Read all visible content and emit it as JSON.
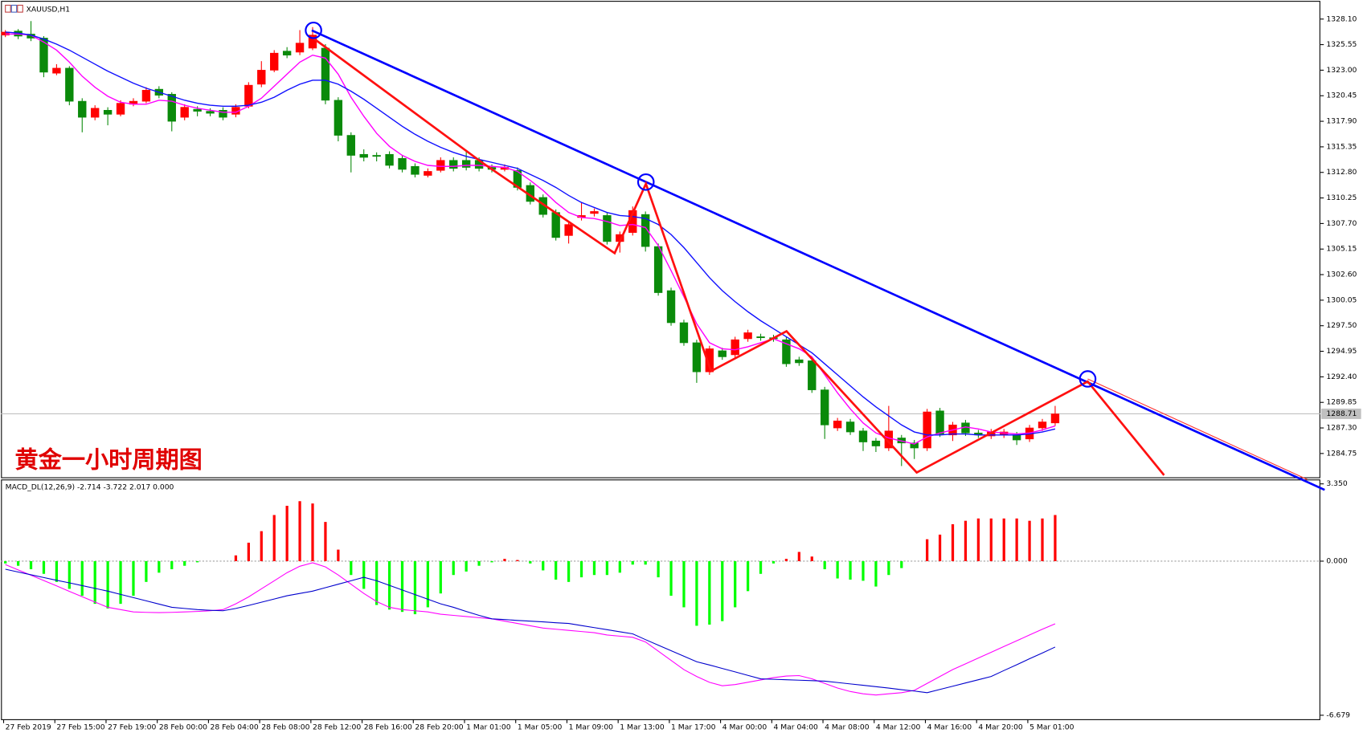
{
  "chart_data": [
    {
      "type": "candlestick",
      "title": "XAUUSD,H1",
      "annotation": "黄金一小时周期图",
      "categories": [
        "27 Feb 2019",
        null,
        null,
        null,
        "27 Feb 15:00",
        null,
        null,
        null,
        "27 Feb 19:00",
        null,
        null,
        null,
        "28 Feb 00:00",
        null,
        null,
        null,
        "28 Feb 04:00",
        null,
        null,
        null,
        "28 Feb 08:00",
        null,
        null,
        null,
        "28 Feb 12:00",
        null,
        null,
        null,
        "28 Feb 16:00",
        null,
        null,
        null,
        "28 Feb 20:00",
        null,
        null,
        null,
        "1 Mar 01:00",
        null,
        null,
        null,
        "1 Mar 05:00",
        null,
        null,
        null,
        "1 Mar 09:00",
        null,
        null,
        null,
        "1 Mar 13:00",
        null,
        null,
        null,
        "1 Mar 17:00",
        null,
        null,
        null,
        "4 Mar 00:00",
        null,
        null,
        null,
        "4 Mar 04:00",
        null,
        null,
        null,
        "4 Mar 08:00",
        null,
        null,
        null,
        "4 Mar 12:00",
        null,
        null,
        null,
        "4 Mar 16:00",
        null,
        null,
        null,
        "4 Mar 20:00",
        null,
        null,
        null,
        "5 Mar 01:00",
        null,
        null
      ],
      "open": [
        1326.5,
        1326.9,
        1326.6,
        1326.2,
        1322.7,
        1323.2,
        1319.9,
        1318.3,
        1319.0,
        1318.6,
        1319.6,
        1319.9,
        1321.1,
        1320.6,
        1318.3,
        1319.1,
        1318.9,
        1319.0,
        1318.6,
        1319.4,
        1321.6,
        1323.0,
        1324.9,
        1324.8,
        1325.2,
        1325.2,
        1320.0,
        1316.5,
        1314.6,
        1314.5,
        1314.6,
        1314.2,
        1313.4,
        1312.5,
        1313.0,
        1314.0,
        1314.0,
        1314.0,
        1313.3,
        1313.1,
        1313.0,
        1311.5,
        1310.3,
        1308.8,
        1306.5,
        1308.3,
        1308.7,
        1308.5,
        1305.9,
        1306.8,
        1308.6,
        1305.4,
        1301.0,
        1297.8,
        1295.8,
        1292.9,
        1295.0,
        1294.6,
        1296.2,
        1296.4,
        1296.3,
        1296.1,
        1294.1,
        1294.0,
        1291.1,
        1287.3,
        1287.9,
        1287.0,
        1286.0,
        1285.3,
        1286.3,
        1285.8,
        1285.3,
        1289.0,
        1286.6,
        1287.8,
        1286.8,
        1286.5,
        1286.6,
        1286.6,
        1286.2,
        1287.3,
        1287.8
      ],
      "high": [
        1327.0,
        1327.1,
        1327.9,
        1326.4,
        1323.6,
        1323.4,
        1320.2,
        1319.5,
        1319.3,
        1320.0,
        1320.2,
        1321.3,
        1321.4,
        1320.8,
        1319.6,
        1319.4,
        1319.2,
        1319.3,
        1319.6,
        1321.8,
        1323.9,
        1325.0,
        1325.3,
        1327.0,
        1327.3,
        1325.6,
        1320.3,
        1316.8,
        1315.1,
        1314.8,
        1314.9,
        1314.5,
        1313.7,
        1313.2,
        1314.3,
        1314.3,
        1315.0,
        1314.3,
        1313.6,
        1313.6,
        1313.3,
        1311.8,
        1310.6,
        1309.1,
        1307.9,
        1309.8,
        1309.2,
        1308.8,
        1306.9,
        1309.4,
        1308.9,
        1305.7,
        1301.3,
        1298.1,
        1296.1,
        1295.5,
        1295.3,
        1296.4,
        1297.1,
        1296.7,
        1296.6,
        1296.4,
        1294.4,
        1294.3,
        1291.4,
        1288.3,
        1288.2,
        1287.3,
        1286.3,
        1289.5,
        1286.6,
        1286.1,
        1289.2,
        1289.3,
        1287.9,
        1288.1,
        1287.1,
        1287.2,
        1287.2,
        1286.9,
        1287.6,
        1288.2,
        1289.5
      ],
      "low": [
        1326.3,
        1326.1,
        1325.9,
        1322.3,
        1322.5,
        1319.5,
        1316.8,
        1318.0,
        1317.5,
        1318.4,
        1319.4,
        1319.7,
        1320.2,
        1316.9,
        1318.0,
        1318.4,
        1318.4,
        1318.0,
        1318.3,
        1319.2,
        1321.3,
        1322.8,
        1324.2,
        1324.5,
        1325.0,
        1319.6,
        1315.9,
        1312.8,
        1313.9,
        1313.9,
        1313.2,
        1312.8,
        1312.3,
        1312.3,
        1312.8,
        1312.9,
        1313.0,
        1312.9,
        1312.8,
        1312.9,
        1311.0,
        1309.6,
        1308.3,
        1306.0,
        1305.7,
        1308.0,
        1308.4,
        1305.6,
        1304.8,
        1306.5,
        1304.9,
        1300.5,
        1297.5,
        1295.5,
        1291.8,
        1292.6,
        1294.1,
        1294.3,
        1295.9,
        1296.0,
        1295.9,
        1293.4,
        1293.5,
        1290.8,
        1286.2,
        1287.0,
        1286.6,
        1285.0,
        1284.9,
        1285.0,
        1283.5,
        1284.2,
        1285.0,
        1286.4,
        1286.0,
        1286.5,
        1286.3,
        1286.2,
        1286.3,
        1285.6,
        1285.9,
        1287.0,
        1287.5
      ],
      "close": [
        1326.8,
        1326.4,
        1326.2,
        1322.8,
        1323.2,
        1319.9,
        1318.3,
        1319.2,
        1318.6,
        1319.7,
        1319.9,
        1321.0,
        1320.5,
        1317.9,
        1319.3,
        1318.9,
        1318.7,
        1318.3,
        1319.3,
        1321.5,
        1323.0,
        1324.7,
        1324.5,
        1325.7,
        1326.5,
        1320.0,
        1316.5,
        1314.5,
        1314.3,
        1314.4,
        1313.5,
        1313.1,
        1312.6,
        1312.9,
        1314.0,
        1313.2,
        1313.3,
        1313.2,
        1313.1,
        1313.3,
        1311.3,
        1309.9,
        1308.6,
        1306.3,
        1307.6,
        1308.5,
        1308.9,
        1305.9,
        1306.6,
        1309.0,
        1305.4,
        1300.8,
        1297.8,
        1295.8,
        1292.9,
        1295.2,
        1294.4,
        1296.1,
        1296.8,
        1296.3,
        1296.2,
        1293.7,
        1293.8,
        1291.1,
        1287.6,
        1288.0,
        1286.9,
        1285.9,
        1285.5,
        1287.0,
        1285.8,
        1285.3,
        1288.9,
        1286.7,
        1287.6,
        1286.8,
        1286.6,
        1286.9,
        1286.9,
        1286.1,
        1287.3,
        1287.9,
        1288.7
      ],
      "up_color": "#ff0000",
      "down_color": "#0a8a0a",
      "series": [
        {
          "color": "#ff00ff",
          "values": [
            1326.6,
            1326.6,
            1326.5,
            1325.8,
            1325.0,
            1323.8,
            1322.4,
            1321.3,
            1320.4,
            1319.8,
            1319.6,
            1319.6,
            1320.0,
            1319.9,
            1319.5,
            1319.2,
            1319.0,
            1318.8,
            1318.8,
            1319.4,
            1320.2,
            1321.4,
            1322.6,
            1323.8,
            1324.5,
            1324.2,
            1322.6,
            1320.3,
            1318.4,
            1316.7,
            1315.4,
            1314.5,
            1313.9,
            1313.5,
            1313.4,
            1313.4,
            1313.5,
            1313.5,
            1313.4,
            1313.3,
            1312.9,
            1312.0,
            1311.0,
            1309.8,
            1308.8,
            1308.3,
            1308.2,
            1307.9,
            1307.5,
            1307.6,
            1307.3,
            1305.5,
            1303.0,
            1300.4,
            1297.7,
            1295.8,
            1295.2,
            1295.1,
            1295.4,
            1295.8,
            1296.2,
            1295.7,
            1295.2,
            1294.4,
            1292.6,
            1290.8,
            1289.2,
            1287.8,
            1286.8,
            1286.3,
            1286.0,
            1285.7,
            1286.4,
            1286.8,
            1287.1,
            1287.4,
            1287.2,
            1286.9,
            1286.8,
            1286.7,
            1286.8,
            1287.1,
            1287.5
          ]
        },
        {
          "color": "#1010ff",
          "values": [
            1326.8,
            1326.7,
            1326.5,
            1326.1,
            1325.6,
            1325.0,
            1324.3,
            1323.6,
            1322.9,
            1322.3,
            1321.7,
            1321.2,
            1320.8,
            1320.4,
            1320.0,
            1319.7,
            1319.5,
            1319.4,
            1319.4,
            1319.5,
            1319.8,
            1320.3,
            1321.0,
            1321.6,
            1322.0,
            1322.0,
            1321.6,
            1320.9,
            1320.1,
            1319.2,
            1318.3,
            1317.4,
            1316.6,
            1315.9,
            1315.3,
            1314.8,
            1314.4,
            1314.1,
            1313.8,
            1313.5,
            1313.2,
            1312.6,
            1312.0,
            1311.3,
            1310.5,
            1309.8,
            1309.3,
            1308.8,
            1308.5,
            1308.4,
            1308.2,
            1307.6,
            1306.6,
            1305.3,
            1303.8,
            1302.3,
            1301.0,
            1299.9,
            1298.9,
            1298.0,
            1297.2,
            1296.4,
            1295.6,
            1294.8,
            1293.7,
            1292.6,
            1291.5,
            1290.4,
            1289.4,
            1288.5,
            1287.6,
            1286.9,
            1286.6,
            1286.6,
            1286.7,
            1286.7,
            1286.6,
            1286.6,
            1286.6,
            1286.6,
            1286.7,
            1286.9,
            1287.2
          ]
        }
      ],
      "current_price": 1288.71,
      "ylim": [
        1282.33,
        1329.83
      ],
      "yticks": [
        {
          "value": 1328.1,
          "label": "1328.10"
        },
        {
          "value": 1325.55,
          "label": "1325.55"
        },
        {
          "value": 1323,
          "label": "1323.00"
        },
        {
          "value": 1320.45,
          "label": "1320.45"
        },
        {
          "value": 1317.9,
          "label": "1317.90"
        },
        {
          "value": 1315.35,
          "label": "1315.35"
        },
        {
          "value": 1312.8,
          "label": "1312.80"
        },
        {
          "value": 1310.25,
          "label": "1310.25"
        },
        {
          "value": 1307.7,
          "label": "1307.70"
        },
        {
          "value": 1305.15,
          "label": "1305.15"
        },
        {
          "value": 1302.6,
          "label": "1302.60"
        },
        {
          "value": 1300.05,
          "label": "1300.05"
        },
        {
          "value": 1297.5,
          "label": "1297.50"
        },
        {
          "value": 1294.95,
          "label": "1294.95"
        },
        {
          "value": 1292.4,
          "label": "1292.40"
        },
        {
          "value": 1289.85,
          "label": "1289.85"
        },
        {
          "value": 1287.3,
          "label": "1287.30"
        },
        {
          "value": 1284.75,
          "label": "1284.75"
        }
      ]
    },
    {
      "type": "macd",
      "label": "MACD_DL(12,26,9) -2.714 -3.722 2.017 0.000",
      "values": [
        -0.1,
        -0.2,
        -0.35,
        -0.55,
        -0.9,
        -1.2,
        -1.5,
        -1.85,
        -2.05,
        -1.85,
        -1.5,
        -0.9,
        -0.5,
        -0.35,
        -0.2,
        -0.05,
        0,
        0,
        0.25,
        0.8,
        1.3,
        2.0,
        2.4,
        2.6,
        2.5,
        1.7,
        0.5,
        -0.6,
        -1.2,
        -1.9,
        -2.1,
        -2.2,
        -2.3,
        -2.0,
        -1.4,
        -0.6,
        -0.45,
        -0.2,
        -0.05,
        0.1,
        0.05,
        -0.1,
        -0.4,
        -0.8,
        -0.9,
        -0.7,
        -0.6,
        -0.6,
        -0.5,
        -0.15,
        -0.15,
        -0.7,
        -1.5,
        -2.0,
        -2.8,
        -2.75,
        -2.6,
        -2.0,
        -1.3,
        -0.55,
        -0.1,
        0.1,
        0.4,
        0.2,
        -0.35,
        -0.75,
        -0.8,
        -0.85,
        -1.1,
        -0.6,
        -0.3,
        0,
        0.95,
        1.15,
        1.6,
        1.75,
        1.85,
        1.85,
        1.85,
        1.85,
        1.75,
        1.85,
        2.0
      ],
      "up_color": "#ff0000",
      "down_color": "#00ff00",
      "series": [
        {
          "color": "#ff00ff",
          "values": [
            -0.15,
            -0.38,
            -0.61,
            -0.84,
            -1.07,
            -1.31,
            -1.54,
            -1.77,
            -2.0,
            -2.1,
            -2.2,
            -2.22,
            -2.23,
            -2.22,
            -2.2,
            -2.18,
            -2.15,
            -2.1,
            -1.85,
            -1.55,
            -1.2,
            -0.85,
            -0.5,
            -0.22,
            -0.07,
            -0.25,
            -0.6,
            -1.0,
            -1.4,
            -1.75,
            -2.0,
            -2.1,
            -2.15,
            -2.2,
            -2.3,
            -2.35,
            -2.4,
            -2.45,
            -2.5,
            -2.6,
            -2.7,
            -2.8,
            -2.9,
            -2.95,
            -3.0,
            -3.05,
            -3.1,
            -3.2,
            -3.25,
            -3.3,
            -3.5,
            -3.9,
            -4.3,
            -4.7,
            -5.0,
            -5.25,
            -5.4,
            -5.35,
            -5.25,
            -5.15,
            -5.05,
            -4.98,
            -4.96,
            -5.1,
            -5.3,
            -5.5,
            -5.65,
            -5.75,
            -5.8,
            -5.75,
            -5.7,
            -5.6,
            -5.3,
            -5.0,
            -4.7,
            -4.45,
            -4.2,
            -3.95,
            -3.7,
            -3.45,
            -3.2,
            -2.95,
            -2.714
          ]
        },
        {
          "color": "#0000cd",
          "values": [
            -0.35,
            -0.47,
            -0.59,
            -0.71,
            -0.83,
            -0.94,
            -1.06,
            -1.18,
            -1.3,
            -1.44,
            -1.58,
            -1.72,
            -1.86,
            -2.0,
            -2.05,
            -2.1,
            -2.13,
            -2.15,
            -2.05,
            -1.92,
            -1.78,
            -1.64,
            -1.5,
            -1.4,
            -1.3,
            -1.15,
            -1.0,
            -0.85,
            -0.7,
            -0.85,
            -1.05,
            -1.25,
            -1.45,
            -1.65,
            -1.85,
            -2.0,
            -2.18,
            -2.35,
            -2.5,
            -2.53,
            -2.57,
            -2.6,
            -2.63,
            -2.67,
            -2.7,
            -2.79,
            -2.88,
            -2.97,
            -3.06,
            -3.15,
            -3.4,
            -3.64,
            -3.88,
            -4.12,
            -4.36,
            -4.5,
            -4.65,
            -4.8,
            -4.95,
            -5.1,
            -5.12,
            -5.14,
            -5.16,
            -5.18,
            -5.2,
            -5.26,
            -5.32,
            -5.38,
            -5.44,
            -5.5,
            -5.57,
            -5.63,
            -5.7,
            -5.56,
            -5.42,
            -5.28,
            -5.14,
            -5.0,
            -4.74,
            -4.49,
            -4.23,
            -3.98,
            -3.722
          ]
        }
      ],
      "ylim": [
        -6.87,
        3.54
      ],
      "yticks": [
        {
          "value": 3.35,
          "label": "3.350"
        },
        {
          "value": 0,
          "label": "0.000"
        },
        {
          "value": -6.679,
          "label": "-6.679"
        }
      ]
    }
  ]
}
